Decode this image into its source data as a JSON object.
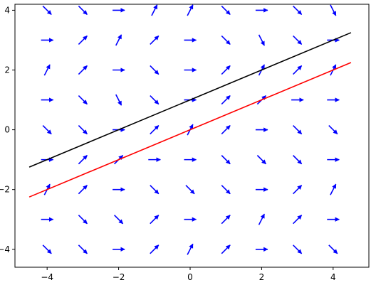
{
  "chart_data": {
    "type": "quiver",
    "title": "",
    "xlabel": "",
    "ylabel": "",
    "xlim": [
      -4.9,
      5.0
    ],
    "ylim": [
      -4.6,
      4.2
    ],
    "x_ticks": [
      -4,
      -2,
      0,
      2,
      4
    ],
    "y_ticks": [
      -4,
      -2,
      0,
      2,
      4
    ],
    "x_tick_labels": [
      "−4",
      "−2",
      "0",
      "2",
      "4"
    ],
    "y_tick_labels": [
      "−4",
      "−2",
      "0",
      "2",
      "4"
    ],
    "grid": false,
    "legend": "none",
    "arrow_color": "#0000ff",
    "vector_field": {
      "x": [
        -4,
        -3,
        -2,
        -1,
        0,
        1,
        2,
        3,
        4
      ],
      "y": [
        4,
        3,
        2,
        1,
        0,
        -1,
        -2,
        -3,
        -4
      ],
      "note_rows_top_to_bottom": true,
      "angles_deg": [
        [
          -45,
          -45,
          0,
          63,
          63,
          -45,
          0,
          -45,
          -63
        ],
        [
          0,
          45,
          63,
          45,
          0,
          -45,
          -63,
          -45,
          0
        ],
        [
          63,
          45,
          0,
          -45,
          0,
          45,
          63,
          45,
          63
        ],
        [
          0,
          -45,
          -63,
          -45,
          0,
          45,
          45,
          0,
          0
        ],
        [
          -45,
          -45,
          0,
          45,
          63,
          45,
          0,
          -45,
          -45
        ],
        [
          0,
          45,
          45,
          0,
          0,
          -45,
          -45,
          -45,
          0
        ],
        [
          63,
          45,
          0,
          -45,
          -45,
          -45,
          0,
          45,
          63
        ],
        [
          0,
          -45,
          -45,
          45,
          0,
          45,
          63,
          45,
          0
        ],
        [
          -45,
          -45,
          0,
          45,
          63,
          45,
          0,
          -45,
          -45
        ]
      ]
    },
    "series": [
      {
        "color": "#000000",
        "x": [
          -4.5,
          4.5
        ],
        "y": [
          -1.25,
          3.25
        ]
      },
      {
        "color": "#ff0000",
        "x": [
          -4.5,
          4.5
        ],
        "y": [
          -2.25,
          2.25
        ]
      }
    ]
  }
}
